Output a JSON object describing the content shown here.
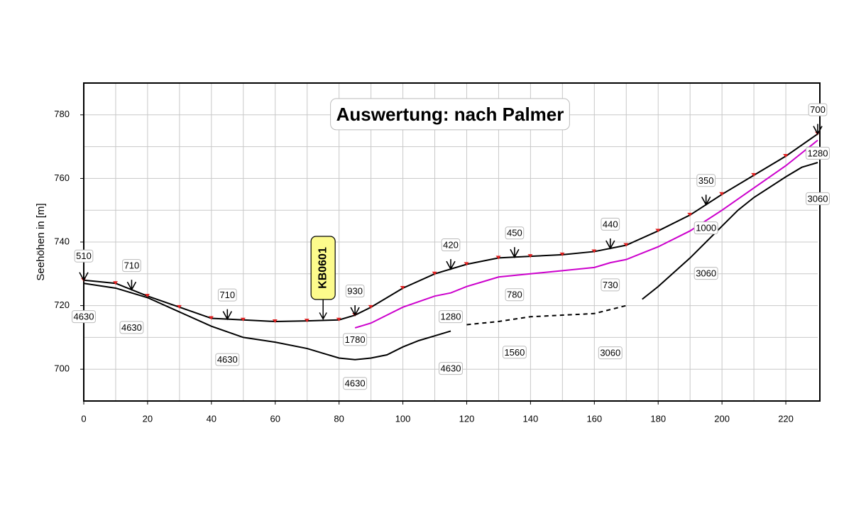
{
  "chart_data": {
    "type": "line",
    "title": "Auswertung: nach Palmer",
    "ylabel": "Seehöhen in [m]",
    "xlim": [
      0,
      230
    ],
    "ylim": [
      690,
      790
    ],
    "xticks": [
      0,
      20,
      40,
      60,
      80,
      100,
      120,
      140,
      160,
      180,
      200,
      220
    ],
    "yticks": [
      700,
      720,
      740,
      760,
      780
    ],
    "grid": true,
    "series": [
      {
        "color": "#000000",
        "style": "solid",
        "markers": true,
        "x": [
          0,
          10,
          20,
          30,
          40,
          50,
          60,
          70,
          80,
          85,
          90,
          100,
          110,
          120,
          130,
          140,
          150,
          160,
          170,
          180,
          190,
          200,
          210,
          220,
          230
        ],
        "values": [
          728,
          727,
          723,
          719.5,
          716,
          715.5,
          715,
          715.2,
          715.5,
          717,
          719.5,
          725.5,
          730,
          733,
          735,
          735.5,
          736,
          737,
          739,
          743.5,
          748.5,
          755,
          761,
          767,
          774
        ]
      },
      {
        "color": "#000000",
        "style": "solid",
        "x": [
          0,
          10,
          20,
          30,
          40,
          50,
          60,
          70,
          75,
          80,
          85,
          90,
          95,
          100,
          105,
          110,
          115
        ],
        "values": [
          727,
          725.5,
          722.5,
          718,
          713.5,
          710,
          708.5,
          706.5,
          705,
          703.5,
          703,
          703.5,
          704.5,
          707,
          709,
          710.5,
          712
        ]
      },
      {
        "color": "#000000",
        "style": "dashed",
        "x": [
          120,
          130,
          140,
          150,
          160,
          170
        ],
        "values": [
          714,
          715,
          716.5,
          717,
          717.5,
          720
        ]
      },
      {
        "color": "#000000",
        "style": "solid",
        "x": [
          175,
          180,
          190,
          200,
          205,
          210,
          220,
          225,
          230
        ],
        "values": [
          722,
          726,
          735,
          745,
          750,
          754,
          760.5,
          763.5,
          765
        ]
      },
      {
        "color": "#cc00cc",
        "style": "solid",
        "x": [
          85,
          90,
          95,
          100,
          110,
          115,
          120,
          125,
          130,
          140,
          150,
          160,
          165,
          170,
          180,
          190,
          200,
          210,
          220,
          230
        ],
        "values": [
          713,
          714.5,
          717,
          719.5,
          723,
          724,
          726,
          727.5,
          729,
          730,
          731,
          732,
          733.5,
          734.5,
          738.5,
          743.5,
          750,
          757,
          764,
          772
        ]
      }
    ],
    "shotpoints": [
      {
        "x": 0,
        "label": "510"
      },
      {
        "x": 15,
        "label": "710"
      },
      {
        "x": 45,
        "label": "710"
      },
      {
        "x": 85,
        "label": "930"
      },
      {
        "x": 115,
        "label": "420"
      },
      {
        "x": 135,
        "label": "450"
      },
      {
        "x": 165,
        "label": "440"
      },
      {
        "x": 195,
        "label": "350"
      },
      {
        "x": 230,
        "label": "700"
      }
    ],
    "velocities": [
      {
        "text": "4630",
        "x": 0,
        "y": 716.3
      },
      {
        "text": "4630",
        "x": 15,
        "y": 712.9
      },
      {
        "text": "4630",
        "x": 45,
        "y": 702.8
      },
      {
        "text": "4630",
        "x": 85,
        "y": 695.3
      },
      {
        "text": "4630",
        "x": 115,
        "y": 700
      },
      {
        "text": "1280",
        "x": 115,
        "y": 716.3
      },
      {
        "text": "1780",
        "x": 85,
        "y": 709.1
      },
      {
        "text": "780",
        "x": 135,
        "y": 723.2
      },
      {
        "text": "730",
        "x": 165,
        "y": 726.3
      },
      {
        "text": "1560",
        "x": 135,
        "y": 705.1
      },
      {
        "text": "3060",
        "x": 165,
        "y": 704.9
      },
      {
        "text": "3060",
        "x": 195,
        "y": 729.9
      },
      {
        "text": "1000",
        "x": 195,
        "y": 744.2
      },
      {
        "text": "3060",
        "x": 230,
        "y": 753.4
      },
      {
        "text": "1280",
        "x": 230,
        "y": 767.7
      }
    ],
    "borehole": {
      "label": "KB0601",
      "x": 75
    }
  }
}
